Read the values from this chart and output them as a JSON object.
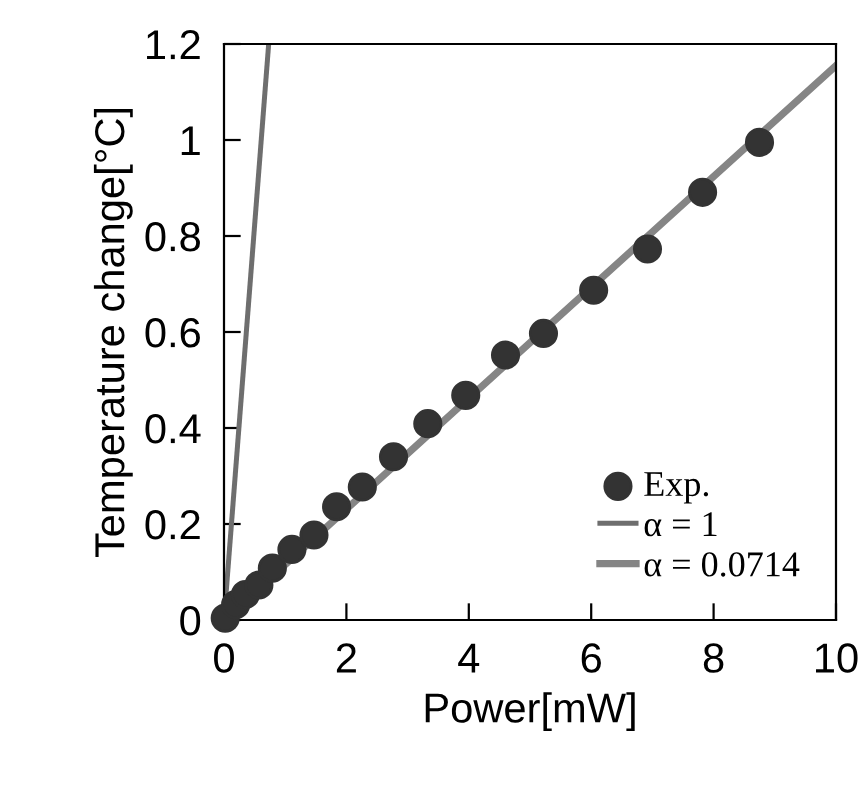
{
  "chart_data": {
    "type": "scatter",
    "xlabel": "Power[mW]",
    "ylabel": "Temperature change[°C]",
    "xlim": [
      0,
      10
    ],
    "ylim": [
      0,
      1.2
    ],
    "xticks": [
      0,
      2,
      4,
      6,
      8,
      10
    ],
    "yticks": [
      0,
      0.2,
      0.4,
      0.6,
      0.8,
      1,
      1.2
    ],
    "grid": false,
    "legend": "bottom right",
    "series": [
      {
        "name": "Exp.",
        "marker": "circle",
        "color": "#333333",
        "x": [
          0.02,
          0.19,
          0.35,
          0.57,
          0.79,
          1.11,
          1.47,
          1.84,
          2.26,
          2.77,
          3.33,
          3.95,
          4.6,
          5.22,
          6.04,
          6.92,
          7.82,
          8.75
        ],
        "values": [
          0.004,
          0.032,
          0.053,
          0.073,
          0.108,
          0.147,
          0.177,
          0.236,
          0.277,
          0.34,
          0.409,
          0.468,
          0.552,
          0.597,
          0.687,
          0.773,
          0.891,
          0.995
        ]
      },
      {
        "name": "α = 1",
        "type": "line",
        "color": "#6e6e6e",
        "marker": "none",
        "line_style": "solid",
        "x": [
          0,
          0.73
        ],
        "values": [
          0,
          1.2
        ]
      },
      {
        "name": "α = 0.0714",
        "type": "line",
        "color": "#858585",
        "marker": "none",
        "line_style": "solid",
        "x": [
          0,
          10
        ],
        "values": [
          0,
          1.155
        ]
      }
    ]
  }
}
